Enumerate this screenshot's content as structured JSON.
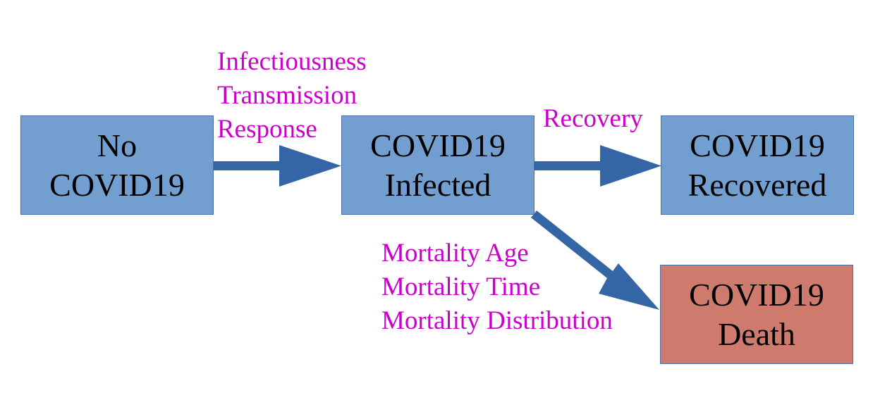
{
  "colors": {
    "node_fill": "#729fcf",
    "death_fill": "#ce7b6e",
    "arrow": "#3465a4",
    "label_text": "#cc00cc"
  },
  "nodes": {
    "no_covid": {
      "line1": "No",
      "line2": "COVID19"
    },
    "infected": {
      "line1": "COVID19",
      "line2": "Infected"
    },
    "recovered": {
      "line1": "COVID19",
      "line2": "Recovered"
    },
    "death": {
      "line1": "COVID19",
      "line2": "Death"
    }
  },
  "edges": {
    "infection": {
      "lines": [
        "Infectiousness",
        "Transmission",
        "Response"
      ]
    },
    "recovery": {
      "lines": [
        "Recovery"
      ]
    },
    "mortality": {
      "lines": [
        "Mortality Age",
        "Mortality Time",
        "Mortality Distribution"
      ]
    }
  }
}
